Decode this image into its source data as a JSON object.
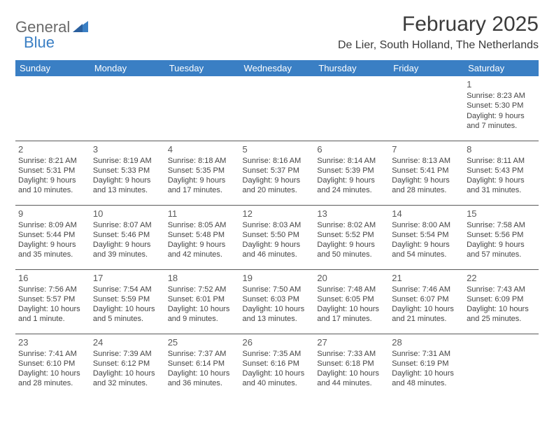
{
  "logo": {
    "part1": "General",
    "part2": "Blue"
  },
  "title": "February 2025",
  "location": "De Lier, South Holland, The Netherlands",
  "colors": {
    "header_bg": "#3a7fc4",
    "header_text": "#ffffff",
    "border": "#5a5a5a",
    "daynum": "#5a5a5a",
    "body_text": "#444444",
    "logo_gray": "#6a6a6a",
    "logo_blue": "#3a7fc4"
  },
  "day_headers": [
    "Sunday",
    "Monday",
    "Tuesday",
    "Wednesday",
    "Thursday",
    "Friday",
    "Saturday"
  ],
  "weeks": [
    [
      null,
      null,
      null,
      null,
      null,
      null,
      {
        "n": "1",
        "sr": "8:23 AM",
        "ss": "5:30 PM",
        "dl": "9 hours and 7 minutes."
      }
    ],
    [
      {
        "n": "2",
        "sr": "8:21 AM",
        "ss": "5:31 PM",
        "dl": "9 hours and 10 minutes."
      },
      {
        "n": "3",
        "sr": "8:19 AM",
        "ss": "5:33 PM",
        "dl": "9 hours and 13 minutes."
      },
      {
        "n": "4",
        "sr": "8:18 AM",
        "ss": "5:35 PM",
        "dl": "9 hours and 17 minutes."
      },
      {
        "n": "5",
        "sr": "8:16 AM",
        "ss": "5:37 PM",
        "dl": "9 hours and 20 minutes."
      },
      {
        "n": "6",
        "sr": "8:14 AM",
        "ss": "5:39 PM",
        "dl": "9 hours and 24 minutes."
      },
      {
        "n": "7",
        "sr": "8:13 AM",
        "ss": "5:41 PM",
        "dl": "9 hours and 28 minutes."
      },
      {
        "n": "8",
        "sr": "8:11 AM",
        "ss": "5:43 PM",
        "dl": "9 hours and 31 minutes."
      }
    ],
    [
      {
        "n": "9",
        "sr": "8:09 AM",
        "ss": "5:44 PM",
        "dl": "9 hours and 35 minutes."
      },
      {
        "n": "10",
        "sr": "8:07 AM",
        "ss": "5:46 PM",
        "dl": "9 hours and 39 minutes."
      },
      {
        "n": "11",
        "sr": "8:05 AM",
        "ss": "5:48 PM",
        "dl": "9 hours and 42 minutes."
      },
      {
        "n": "12",
        "sr": "8:03 AM",
        "ss": "5:50 PM",
        "dl": "9 hours and 46 minutes."
      },
      {
        "n": "13",
        "sr": "8:02 AM",
        "ss": "5:52 PM",
        "dl": "9 hours and 50 minutes."
      },
      {
        "n": "14",
        "sr": "8:00 AM",
        "ss": "5:54 PM",
        "dl": "9 hours and 54 minutes."
      },
      {
        "n": "15",
        "sr": "7:58 AM",
        "ss": "5:56 PM",
        "dl": "9 hours and 57 minutes."
      }
    ],
    [
      {
        "n": "16",
        "sr": "7:56 AM",
        "ss": "5:57 PM",
        "dl": "10 hours and 1 minute."
      },
      {
        "n": "17",
        "sr": "7:54 AM",
        "ss": "5:59 PM",
        "dl": "10 hours and 5 minutes."
      },
      {
        "n": "18",
        "sr": "7:52 AM",
        "ss": "6:01 PM",
        "dl": "10 hours and 9 minutes."
      },
      {
        "n": "19",
        "sr": "7:50 AM",
        "ss": "6:03 PM",
        "dl": "10 hours and 13 minutes."
      },
      {
        "n": "20",
        "sr": "7:48 AM",
        "ss": "6:05 PM",
        "dl": "10 hours and 17 minutes."
      },
      {
        "n": "21",
        "sr": "7:46 AM",
        "ss": "6:07 PM",
        "dl": "10 hours and 21 minutes."
      },
      {
        "n": "22",
        "sr": "7:43 AM",
        "ss": "6:09 PM",
        "dl": "10 hours and 25 minutes."
      }
    ],
    [
      {
        "n": "23",
        "sr": "7:41 AM",
        "ss": "6:10 PM",
        "dl": "10 hours and 28 minutes."
      },
      {
        "n": "24",
        "sr": "7:39 AM",
        "ss": "6:12 PM",
        "dl": "10 hours and 32 minutes."
      },
      {
        "n": "25",
        "sr": "7:37 AM",
        "ss": "6:14 PM",
        "dl": "10 hours and 36 minutes."
      },
      {
        "n": "26",
        "sr": "7:35 AM",
        "ss": "6:16 PM",
        "dl": "10 hours and 40 minutes."
      },
      {
        "n": "27",
        "sr": "7:33 AM",
        "ss": "6:18 PM",
        "dl": "10 hours and 44 minutes."
      },
      {
        "n": "28",
        "sr": "7:31 AM",
        "ss": "6:19 PM",
        "dl": "10 hours and 48 minutes."
      },
      null
    ]
  ],
  "labels": {
    "sunrise": "Sunrise:",
    "sunset": "Sunset:",
    "daylight": "Daylight:"
  }
}
